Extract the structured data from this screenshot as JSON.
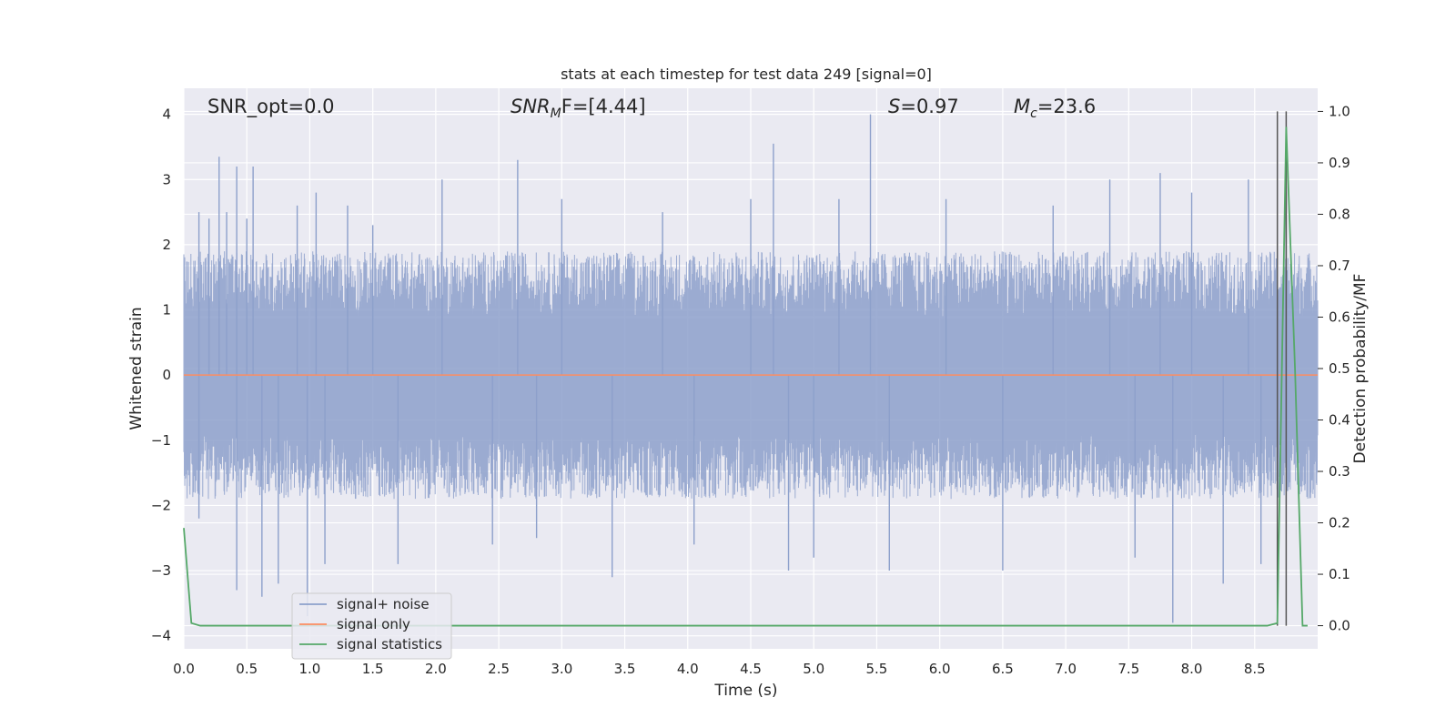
{
  "chart_data": {
    "type": "line",
    "title": "stats at each timestep for test data 249 [signal=0]",
    "xlabel": "Time (s)",
    "ylabel": "Whitened strain",
    "y2label": "Detection probability/MF",
    "xlim": [
      0.0,
      9.0
    ],
    "ylim": [
      -4.2,
      4.4
    ],
    "y2lim": [
      -0.045,
      1.045
    ],
    "x_ticks": [
      "0.0",
      "0.5",
      "1.0",
      "1.5",
      "2.0",
      "2.5",
      "3.0",
      "3.5",
      "4.0",
      "4.5",
      "5.0",
      "5.5",
      "6.0",
      "6.5",
      "7.0",
      "7.5",
      "8.0",
      "8.5"
    ],
    "y_ticks": [
      "4",
      "3",
      "2",
      "1",
      "0",
      "−1",
      "−2",
      "−3",
      "−4"
    ],
    "y2_ticks": [
      "1.0",
      "0.9",
      "0.8",
      "0.7",
      "0.6",
      "0.5",
      "0.4",
      "0.3",
      "0.2",
      "0.1",
      "0.0"
    ],
    "grid": true,
    "legend_position": "lower-left",
    "series": [
      {
        "name": "signal+ noise",
        "axis": "left",
        "color": "#8da0cb",
        "style": "dense noise time series, approx. uniform between -1.5 and 1.6 with spikes",
        "spikes": [
          {
            "x": 0.12,
            "y": 2.5
          },
          {
            "x": 0.12,
            "y": -2.2
          },
          {
            "x": 0.2,
            "y": 2.4
          },
          {
            "x": 0.28,
            "y": 3.35
          },
          {
            "x": 0.34,
            "y": 2.5
          },
          {
            "x": 0.42,
            "y": 3.2
          },
          {
            "x": 0.42,
            "y": -3.3
          },
          {
            "x": 0.5,
            "y": 2.4
          },
          {
            "x": 0.55,
            "y": 3.2
          },
          {
            "x": 0.62,
            "y": -3.4
          },
          {
            "x": 0.75,
            "y": -3.2
          },
          {
            "x": 0.9,
            "y": 2.6
          },
          {
            "x": 0.98,
            "y": -3.7
          },
          {
            "x": 1.05,
            "y": 2.8
          },
          {
            "x": 1.12,
            "y": -2.9
          },
          {
            "x": 1.3,
            "y": 2.6
          },
          {
            "x": 1.5,
            "y": 2.3
          },
          {
            "x": 1.7,
            "y": -2.9
          },
          {
            "x": 2.05,
            "y": 3.0
          },
          {
            "x": 2.45,
            "y": -2.6
          },
          {
            "x": 2.65,
            "y": 3.3
          },
          {
            "x": 2.8,
            "y": -2.5
          },
          {
            "x": 3.0,
            "y": 2.7
          },
          {
            "x": 3.4,
            "y": -3.1
          },
          {
            "x": 3.8,
            "y": 2.5
          },
          {
            "x": 4.05,
            "y": -2.6
          },
          {
            "x": 4.5,
            "y": 2.7
          },
          {
            "x": 4.68,
            "y": 3.55
          },
          {
            "x": 4.8,
            "y": -3.0
          },
          {
            "x": 5.0,
            "y": -2.8
          },
          {
            "x": 5.2,
            "y": 2.7
          },
          {
            "x": 5.45,
            "y": 4.0
          },
          {
            "x": 5.6,
            "y": -3.0
          },
          {
            "x": 6.05,
            "y": 2.7
          },
          {
            "x": 6.5,
            "y": -3.0
          },
          {
            "x": 6.9,
            "y": 2.6
          },
          {
            "x": 7.35,
            "y": 3.0
          },
          {
            "x": 7.55,
            "y": -2.8
          },
          {
            "x": 7.75,
            "y": 3.1
          },
          {
            "x": 7.85,
            "y": -3.8
          },
          {
            "x": 8.0,
            "y": 2.8
          },
          {
            "x": 8.25,
            "y": -3.2
          },
          {
            "x": 8.45,
            "y": 3.0
          },
          {
            "x": 8.55,
            "y": -2.9
          },
          {
            "x": 8.75,
            "y": 2.9
          }
        ]
      },
      {
        "name": "signal only",
        "axis": "left",
        "color": "#fc8d62",
        "x": [
          0.0,
          9.0
        ],
        "y": [
          0.0,
          0.0
        ]
      },
      {
        "name": "signal statistics",
        "axis": "right",
        "color": "#55a868",
        "x": [
          0.0,
          0.06,
          0.13,
          8.6,
          8.68,
          8.75,
          8.82,
          8.88,
          8.92
        ],
        "y": [
          0.19,
          0.005,
          0.0,
          0.0,
          0.005,
          0.97,
          0.5,
          0.0,
          0.0
        ]
      }
    ],
    "vlines": [
      {
        "x": 8.68,
        "axis": "right",
        "y0": 0.0,
        "y1": 1.0,
        "color": "#555555"
      },
      {
        "x": 8.75,
        "axis": "right",
        "y0": 0.0,
        "y1": 1.0,
        "color": "#555555"
      }
    ],
    "annotations": {
      "snr_opt": "SNR_opt=0.0",
      "snr_mf_main": "SNR",
      "snr_mf_sub": "M",
      "snr_mf_rest": "F=[4.44]",
      "s_main": "S",
      "s_rest": "=0.97",
      "mc_main": "M",
      "mc_sub": "c",
      "mc_rest": "=23.6"
    }
  }
}
